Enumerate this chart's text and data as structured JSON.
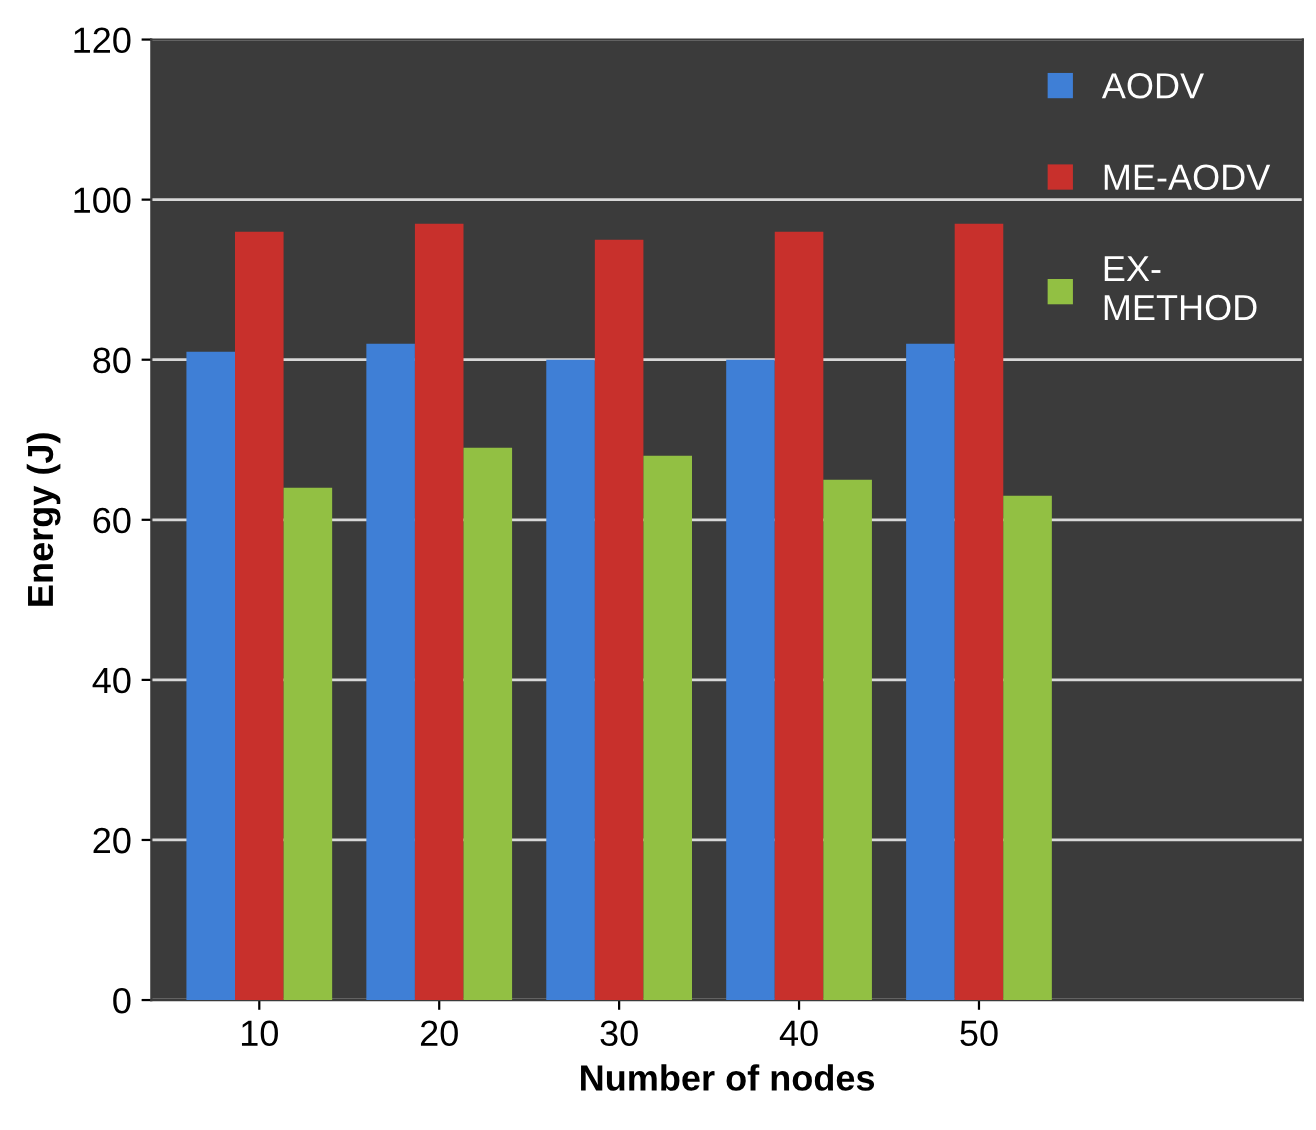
{
  "chart_data": {
    "type": "bar",
    "xlabel": "Number of nodes",
    "ylabel": "Energy (J)",
    "categories": [
      "10",
      "20",
      "30",
      "40",
      "50"
    ],
    "series": [
      {
        "name": "AODV",
        "color": "#3f7fd6",
        "values": [
          81,
          82,
          80,
          80,
          82
        ]
      },
      {
        "name": "ME-AODV",
        "color": "#c8302c",
        "values": [
          96,
          97,
          95,
          96,
          97
        ]
      },
      {
        "name": "EX-\nMETHOD",
        "color": "#92c043",
        "values": [
          64,
          69,
          68,
          65,
          63
        ]
      }
    ],
    "ylim": [
      0,
      120
    ],
    "yticks": [
      0,
      20,
      40,
      60,
      80,
      100,
      120
    ],
    "grid": "y",
    "legend": "top right"
  }
}
